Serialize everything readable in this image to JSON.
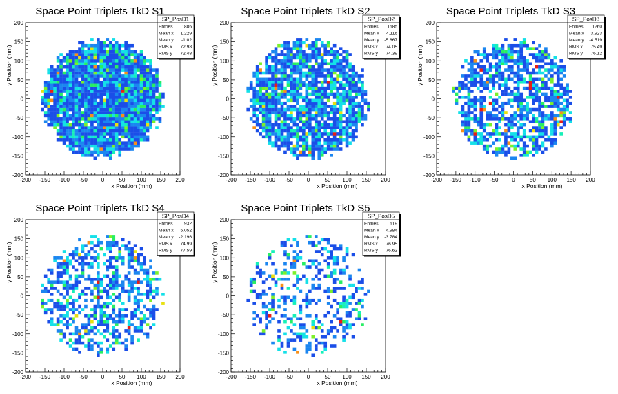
{
  "colors": {
    "palette": [
      "#0a1ec8",
      "#1a4ee8",
      "#1b86f0",
      "#12b8f0",
      "#14e0e8",
      "#16f0b8",
      "#28ee64",
      "#7cf02a",
      "#e8e010",
      "#f89018",
      "#e81e14"
    ],
    "axis": "#000000",
    "background": "#ffffff"
  },
  "chart_data": [
    {
      "type": "heatmap",
      "title": "Space Point Triplets TkD S1",
      "xlabel": "x Position (mm)",
      "ylabel": "y Position (mm)",
      "xlim": [
        -200,
        200
      ],
      "ylim": [
        -200,
        200
      ],
      "xticks": [
        -200,
        -150,
        -100,
        -50,
        0,
        50,
        100,
        150,
        200
      ],
      "yticks": [
        -200,
        -150,
        -100,
        -50,
        0,
        50,
        100,
        150,
        200
      ],
      "bins": {
        "nx": 50,
        "ny": 50
      },
      "distribution": {
        "shape": "disk",
        "radius": 160
      },
      "stats": {
        "name": "SP_PosD1",
        "rows": [
          {
            "label": "Entries",
            "value": "1886"
          },
          {
            "label": "Mean x",
            "value": "1.229"
          },
          {
            "label": "Mean y",
            "value": "-1.02"
          },
          {
            "label": "RMS x",
            "value": "72.98"
          },
          {
            "label": "RMS y",
            "value": "72.48"
          }
        ]
      }
    },
    {
      "type": "heatmap",
      "title": "Space Point Triplets TkD S2",
      "xlabel": "x Position (mm)",
      "ylabel": "y Position (mm)",
      "xlim": [
        -200,
        200
      ],
      "ylim": [
        -200,
        200
      ],
      "xticks": [
        -200,
        -150,
        -100,
        -50,
        0,
        50,
        100,
        150,
        200
      ],
      "yticks": [
        -200,
        -150,
        -100,
        -50,
        0,
        50,
        100,
        150,
        200
      ],
      "bins": {
        "nx": 50,
        "ny": 50
      },
      "distribution": {
        "shape": "disk",
        "radius": 160
      },
      "stats": {
        "name": "SP_PosD2",
        "rows": [
          {
            "label": "Entries",
            "value": "1585"
          },
          {
            "label": "Mean x",
            "value": "4.116"
          },
          {
            "label": "Mean y",
            "value": "-5.867"
          },
          {
            "label": "RMS x",
            "value": "74.05"
          },
          {
            "label": "RMS y",
            "value": "74.39"
          }
        ]
      }
    },
    {
      "type": "heatmap",
      "title": "Space Point Triplets TkD S3",
      "xlabel": "x Position (mm)",
      "ylabel": "y Position (mm)",
      "xlim": [
        -200,
        200
      ],
      "ylim": [
        -200,
        200
      ],
      "xticks": [
        -200,
        -150,
        -100,
        -50,
        0,
        50,
        100,
        150,
        200
      ],
      "yticks": [
        -200,
        -150,
        -100,
        -50,
        0,
        50,
        100,
        150,
        200
      ],
      "bins": {
        "nx": 50,
        "ny": 50
      },
      "distribution": {
        "shape": "disk",
        "radius": 160
      },
      "stats": {
        "name": "SP_PosD3",
        "rows": [
          {
            "label": "Entries",
            "value": "1260"
          },
          {
            "label": "Mean x",
            "value": "3.923"
          },
          {
            "label": "Mean y",
            "value": "-4.519"
          },
          {
            "label": "RMS x",
            "value": "75.49"
          },
          {
            "label": "RMS y",
            "value": "76.12"
          }
        ]
      }
    },
    {
      "type": "heatmap",
      "title": "Space Point Triplets TkD S4",
      "xlabel": "x Position (mm)",
      "ylabel": "y Position (mm)",
      "xlim": [
        -200,
        200
      ],
      "ylim": [
        -200,
        200
      ],
      "xticks": [
        -200,
        -150,
        -100,
        -50,
        0,
        50,
        100,
        150,
        200
      ],
      "yticks": [
        -200,
        -150,
        -100,
        -50,
        0,
        50,
        100,
        150,
        200
      ],
      "bins": {
        "nx": 50,
        "ny": 50
      },
      "distribution": {
        "shape": "disk",
        "radius": 160
      },
      "stats": {
        "name": "SP_PosD4",
        "rows": [
          {
            "label": "Entries",
            "value": "932"
          },
          {
            "label": "Mean x",
            "value": "5.052"
          },
          {
            "label": "Mean y",
            "value": "-2.196"
          },
          {
            "label": "RMS x",
            "value": "74.99"
          },
          {
            "label": "RMS y",
            "value": "77.59"
          }
        ]
      }
    },
    {
      "type": "heatmap",
      "title": "Space Point Triplets TkD S5",
      "xlabel": "x Position (mm)",
      "ylabel": "y Position (mm)",
      "xlim": [
        -200,
        200
      ],
      "ylim": [
        -200,
        200
      ],
      "xticks": [
        -200,
        -150,
        -100,
        -50,
        0,
        50,
        100,
        150,
        200
      ],
      "yticks": [
        -200,
        -150,
        -100,
        -50,
        0,
        50,
        100,
        150,
        200
      ],
      "bins": {
        "nx": 50,
        "ny": 50
      },
      "distribution": {
        "shape": "disk",
        "radius": 160
      },
      "stats": {
        "name": "SP_PosD5",
        "rows": [
          {
            "label": "Entries",
            "value": "619"
          },
          {
            "label": "Mean x",
            "value": "4.984"
          },
          {
            "label": "Mean y",
            "value": "-3.784"
          },
          {
            "label": "RMS x",
            "value": "76.95"
          },
          {
            "label": "RMS y",
            "value": "76.62"
          }
        ]
      }
    }
  ]
}
